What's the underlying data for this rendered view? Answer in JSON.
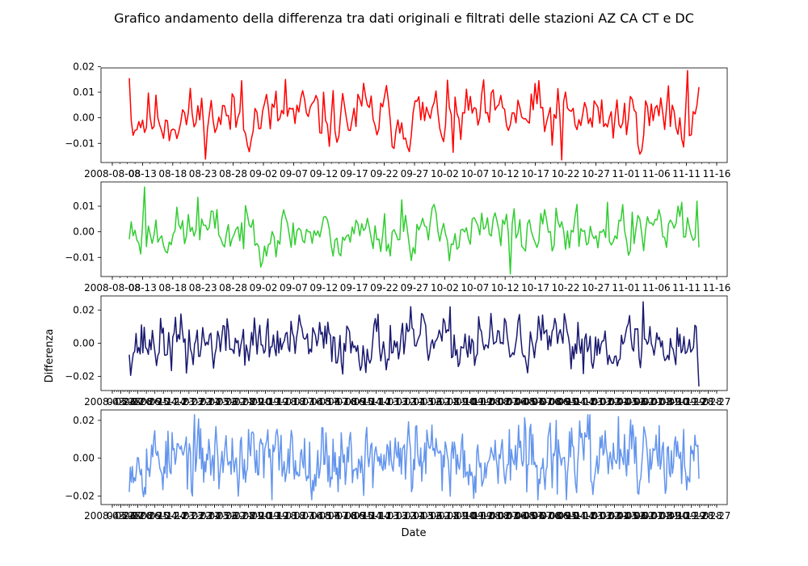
{
  "figure": {
    "title": "Grafico andamento della differenza tra dati originali e filtrati delle stazioni AZ CA CT e DC",
    "ylabel": "Differenza",
    "xlabel": "Date"
  },
  "chart_data": [
    {
      "type": "line",
      "title": "",
      "xlabel": "",
      "ylabel": "",
      "color": "#ff0000",
      "grid": false,
      "ylim": [
        -0.0175,
        0.0195
      ],
      "yticks": [
        -0.01,
        0.0,
        0.01,
        0.02
      ],
      "ytick_labels": [
        "−0.01",
        "0.00",
        "0.01",
        "0.02"
      ],
      "xtick_labels": [
        "2008-08-08",
        "08-13",
        "08-18",
        "08-23",
        "08-28",
        "09-02",
        "09-07",
        "09-12",
        "09-17",
        "09-22",
        "09-27",
        "10-02",
        "10-07",
        "10-12",
        "10-17",
        "10-22",
        "10-27",
        "11-01",
        "11-06",
        "11-11",
        "11-16"
      ],
      "series": [
        {
          "x_start": "2008-08-08",
          "x_end": "2008-11-16",
          "n": 300,
          "min": -0.0165,
          "max": 0.0185,
          "amp": 0.0055,
          "seed": 11,
          "spikes": [
            [
              0,
              0.0155
            ],
            [
              59,
              0.0145
            ],
            [
              82,
              0.015
            ],
            [
              123,
              0.0135
            ],
            [
              170,
              -0.0135
            ],
            [
              215,
              0.0145
            ],
            [
              227,
              -0.0165
            ],
            [
              283,
              0.0125
            ],
            [
              293,
              0.0185
            ],
            [
              299,
              0.012
            ]
          ]
        }
      ]
    },
    {
      "type": "line",
      "title": "",
      "xlabel": "",
      "ylabel": "",
      "color": "#32cd32",
      "grid": false,
      "ylim": [
        -0.0175,
        0.0195
      ],
      "yticks": [
        -0.01,
        0.0,
        0.01
      ],
      "ytick_labels": [
        "−0.01",
        "0.00",
        "0.01"
      ],
      "xtick_labels": [
        "2008-08-08",
        "08-13",
        "08-18",
        "08-23",
        "08-28",
        "09-02",
        "09-07",
        "09-12",
        "09-17",
        "09-22",
        "09-27",
        "10-02",
        "10-07",
        "10-12",
        "10-17",
        "10-22",
        "10-27",
        "11-01",
        "11-06",
        "11-11",
        "11-16"
      ],
      "series": [
        {
          "x_start": "2008-08-08",
          "x_end": "2008-11-16",
          "n": 300,
          "min": -0.0165,
          "max": 0.0175,
          "amp": 0.0045,
          "seed": 23,
          "spikes": [
            [
              8,
              0.0175
            ],
            [
              36,
              0.0135
            ],
            [
              107,
              -0.0095
            ],
            [
              143,
              0.0125
            ],
            [
              200,
              -0.0165
            ],
            [
              251,
              0.0115
            ],
            [
              290,
              0.0115
            ],
            [
              298,
              0.012
            ]
          ]
        }
      ]
    },
    {
      "type": "line",
      "title": "",
      "xlabel": "",
      "ylabel": "Differenza",
      "color": "#191970",
      "grid": false,
      "ylim": [
        -0.0285,
        0.0285
      ],
      "yticks": [
        -0.02,
        0.0,
        0.02
      ],
      "ytick_labels": [
        "−0.02",
        "0.00",
        "0.02"
      ],
      "xtick_labels": [
        "2008-03-28",
        "04-27",
        "05-27",
        "06-26",
        "07-26",
        "08-25",
        "09-24",
        "10-24",
        "11-23",
        "12-23",
        "01-22",
        "02-21",
        "03-23",
        "04-22",
        "05-22",
        "06-21",
        "07-21",
        "08-20",
        "09-19",
        "10-19",
        "11-18",
        "12-18",
        "01-17",
        "02-16",
        "03-18",
        "04-17",
        "05-17",
        "06-16",
        "07-16",
        "08-15",
        "09-14",
        "10-14",
        "11-13",
        "12-13",
        "01-12",
        "02-11",
        "03-13",
        "04-12",
        "05-12",
        "06-11",
        "07-11",
        "08-10",
        "09-09",
        "10-09",
        "11-08",
        "12-08",
        "01-07",
        "02-06",
        "03-08",
        "04-07",
        "05-07",
        "06-06",
        "07-06",
        "08-05",
        "09-04",
        "10-04",
        "11-03",
        "12-03",
        "01-02",
        "02-01",
        "03-03",
        "04-02",
        "05-02",
        "06-01",
        "07-01",
        "07-31",
        "08-30",
        "09-29",
        "10-29",
        "11-28",
        "12-28",
        "01-27"
      ],
      "series": [
        {
          "x_start": "2008-03-28",
          "x_end": "2014-01-27",
          "n": 420,
          "min": -0.026,
          "max": 0.026,
          "amp": 0.0075,
          "seed": 37,
          "spikes": [
            [
              42,
              -0.018
            ],
            [
              257,
              0.016
            ],
            [
              313,
              0.015
            ],
            [
              378,
              0.025
            ],
            [
              417,
              0.01
            ],
            [
              419,
              -0.026
            ]
          ]
        }
      ]
    },
    {
      "type": "line",
      "title": "",
      "xlabel": "Date",
      "ylabel": "",
      "color": "#6495ed",
      "grid": false,
      "ylim": [
        -0.0245,
        0.0255
      ],
      "yticks": [
        -0.02,
        0.0,
        0.02
      ],
      "ytick_labels": [
        "−0.02",
        "0.00",
        "0.02"
      ],
      "xtick_labels": [
        "2008-03-28",
        "04-27",
        "05-27",
        "06-26",
        "07-26",
        "08-25",
        "09-24",
        "10-24",
        "11-23",
        "12-23",
        "01-22",
        "02-21",
        "03-23",
        "04-22",
        "05-22",
        "06-21",
        "07-21",
        "08-20",
        "09-19",
        "10-19",
        "11-18",
        "12-18",
        "01-17",
        "02-16",
        "03-18",
        "04-17",
        "05-17",
        "06-16",
        "07-16",
        "08-15",
        "09-14",
        "10-14",
        "11-13",
        "12-13",
        "01-12",
        "02-11",
        "03-13",
        "04-12",
        "05-12",
        "06-11",
        "07-11",
        "08-10",
        "09-09",
        "10-09",
        "11-08",
        "12-08",
        "01-07",
        "02-06",
        "03-08",
        "04-07",
        "05-07",
        "06-06",
        "07-06",
        "08-05",
        "09-04",
        "10-04",
        "11-03",
        "12-03",
        "01-02",
        "02-01",
        "03-03",
        "04-02",
        "05-02",
        "06-01",
        "07-01",
        "07-31",
        "08-30",
        "09-29",
        "10-29",
        "11-28",
        "12-28",
        "01-27"
      ],
      "series": [
        {
          "x_start": "2008-03-28",
          "x_end": "2014-01-27",
          "n": 560,
          "min": -0.022,
          "max": 0.023,
          "amp": 0.0085,
          "seed": 53,
          "spikes": [
            [
              62,
              -0.02
            ],
            [
              140,
              -0.022
            ],
            [
              420,
              -0.019
            ],
            [
              452,
              0.023
            ],
            [
              480,
              0.022
            ]
          ]
        }
      ]
    }
  ]
}
